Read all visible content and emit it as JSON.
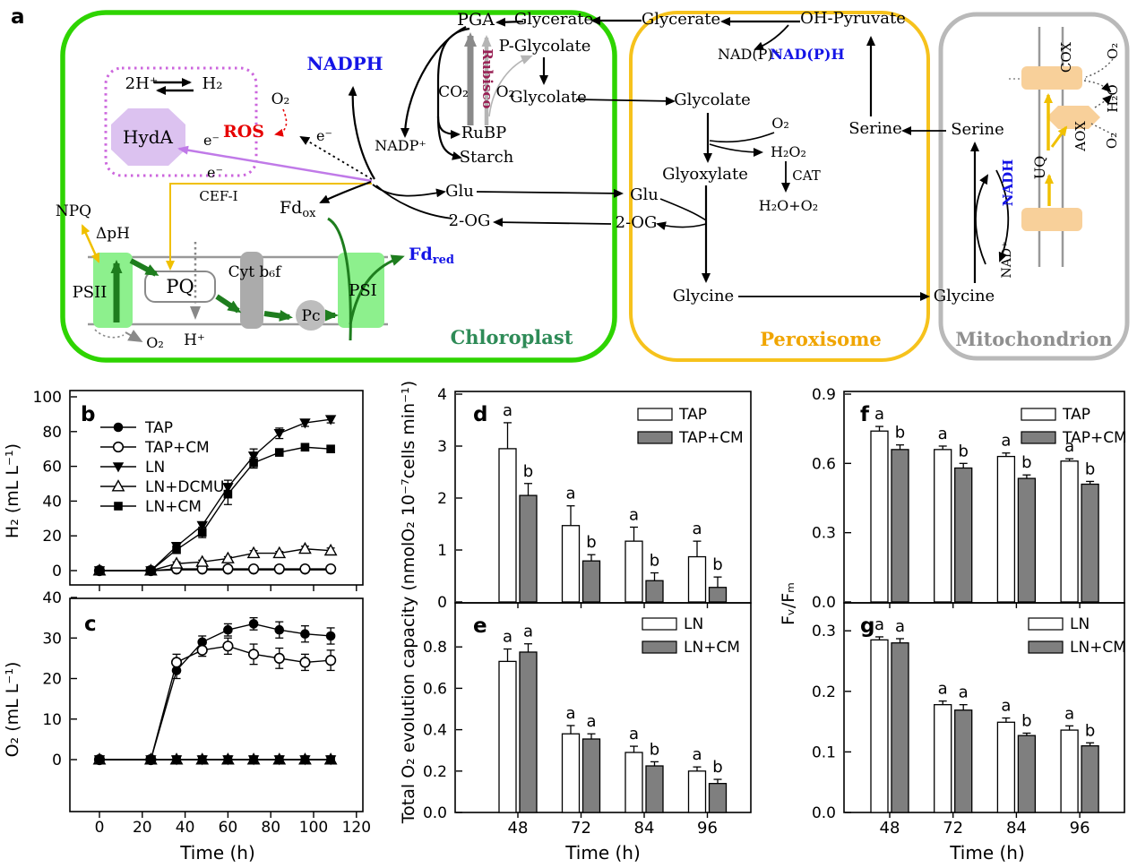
{
  "diagram": {
    "panel_label": "a",
    "colors": {
      "chloroplast_border": "#2ed400",
      "peroxisome_border": "#f6c21c",
      "mitochondrion_border": "#b9b9b9",
      "chloroplast_label": "#2e8b57",
      "peroxisome_label": "#f0a500",
      "mitochondrion_label": "#8f8f8f",
      "blue": "#1414e6",
      "red": "#e60000",
      "rubisco": "#992255"
    },
    "chloroplast": {
      "label": "Chloroplast",
      "h2x": "2H⁺",
      "h2": "H₂",
      "hyda": "HydA",
      "nadph": "NADPH",
      "o2_ros": "O₂",
      "ros": "ROS",
      "e1": "e⁻",
      "e2": "e⁻",
      "e3": "e⁻",
      "cef": "CEF-I",
      "nadp": "NADP⁺",
      "pga": "PGA",
      "glycerate": "Glycerate",
      "rubisco": "Rubisco",
      "co2": "CO₂",
      "o2_rubisco": "O₂",
      "p_glycolate": "P-Glycolate",
      "glycolate": "Glycolate",
      "rubp": "RuBP",
      "starch": "Starch",
      "fd": "Fd",
      "fd_ox_sub": "ox",
      "fd_red": "Fd",
      "fd_red_sub": "red",
      "glu": "Glu",
      "og": "2-OG",
      "npq": "NPQ",
      "dph": "ΔpH",
      "psii": "PSII",
      "pq": "PQ",
      "cytb6f": "Cyt b₆f",
      "pc": "Pc",
      "psi": "PSI",
      "h_plus": "H⁺",
      "o2_psii": "O₂"
    },
    "peroxisome": {
      "label": "Peroxisome",
      "glycerate": "Glycerate",
      "oh_pyruvate": "OH-Pyruvate",
      "nadp": "NAD(P)⁺",
      "nadph": "NAD(P)H",
      "glycolate": "Glycolate",
      "o2": "O₂",
      "h2o2": "H₂O₂",
      "cat": "CAT",
      "h2o_o2": "H₂O+O₂",
      "glyoxylate": "Glyoxylate",
      "glu": "Glu",
      "og": "2-OG",
      "serine": "Serine",
      "glycine": "Glycine"
    },
    "mitochondrion": {
      "label": "Mitochondrion",
      "serine": "Serine",
      "glycine": "Glycine",
      "nadh": "NADH",
      "nad": "NAD⁺",
      "uq": "UQ",
      "cox": "COX",
      "aox": "AOX",
      "o2_top": "O₂",
      "h2o": "H₂O",
      "o2_bottom": "O₂"
    }
  },
  "chart_data": [
    {
      "id": "b",
      "panel_label": "b",
      "type": "line",
      "ylabel": "H₂ (mL L⁻¹)",
      "xlabel": "",
      "xlim": [
        0,
        120
      ],
      "ylim": [
        0,
        100
      ],
      "xticks": [
        0,
        20,
        40,
        60,
        80,
        100,
        120
      ],
      "xtick_labels_visible": false,
      "yticks": [
        "0",
        "20",
        "40",
        "60",
        "80",
        "100"
      ],
      "x": [
        0,
        24,
        36,
        48,
        60,
        72,
        84,
        96,
        108
      ],
      "series": [
        {
          "name": "TAP",
          "marker": "circle_filled",
          "values": [
            0,
            0,
            0.4,
            0.4,
            0.4,
            0.4,
            0.4,
            0.4,
            0.4
          ],
          "errors": [
            0,
            0,
            0,
            0,
            0,
            0,
            0,
            0,
            0
          ]
        },
        {
          "name": "TAP+CM",
          "marker": "circle_open",
          "values": [
            0,
            0,
            1,
            1,
            1,
            1,
            1,
            1,
            1
          ],
          "errors": [
            0,
            0,
            0,
            0,
            0,
            0,
            0,
            0,
            0
          ]
        },
        {
          "name": "LN",
          "marker": "triangle_down_filled",
          "values": [
            0,
            0,
            14,
            26,
            48,
            66,
            79,
            85,
            87
          ],
          "errors": [
            0,
            0,
            2,
            2,
            4,
            4,
            3,
            2,
            2
          ]
        },
        {
          "name": "LN+DCMU",
          "marker": "triangle_up_open",
          "values": [
            0,
            0,
            4,
            5,
            7,
            10,
            10,
            12.5,
            11.5
          ],
          "errors": [
            0,
            0,
            1,
            1,
            1,
            1.5,
            1,
            1.5,
            1.5
          ]
        },
        {
          "name": "LN+CM",
          "marker": "square_filled",
          "values": [
            0,
            0,
            12,
            22,
            44,
            62,
            68,
            71,
            70
          ],
          "errors": [
            0,
            0,
            2,
            3,
            6,
            3,
            2,
            2,
            2
          ]
        }
      ],
      "legend": {
        "position": "top-left",
        "items": [
          "TAP",
          "TAP+CM",
          "LN",
          "LN+DCMU",
          "LN+CM"
        ]
      }
    },
    {
      "id": "c",
      "panel_label": "c",
      "type": "line",
      "ylabel": "O₂ (mL L⁻¹)",
      "xlabel": "Time (h)",
      "xlim": [
        0,
        120
      ],
      "ylim": [
        0,
        40
      ],
      "xticks": [
        0,
        20,
        40,
        60,
        80,
        100,
        120
      ],
      "xtick_labels_visible": true,
      "yticks": [
        "0",
        "10",
        "20",
        "30",
        "40"
      ],
      "x": [
        0,
        24,
        36,
        48,
        60,
        72,
        84,
        96,
        108
      ],
      "series": [
        {
          "name": "TAP",
          "marker": "circle_filled",
          "values": [
            0,
            0,
            22,
            29,
            32,
            33.5,
            32,
            31,
            30.5
          ],
          "errors": [
            0,
            0,
            2,
            1.5,
            1.5,
            1.5,
            2,
            2,
            2
          ]
        },
        {
          "name": "TAP+CM",
          "marker": "circle_open",
          "values": [
            0,
            0,
            24,
            27,
            28,
            26,
            25,
            24,
            24.5
          ],
          "errors": [
            0,
            0,
            2,
            1.5,
            2,
            2.5,
            2.5,
            2,
            2.5
          ]
        },
        {
          "name": "LN",
          "marker": "triangle_down_filled",
          "values": [
            0,
            0,
            0,
            0,
            0,
            0,
            0,
            0,
            0
          ],
          "errors": [
            0,
            0,
            0,
            0,
            0,
            0,
            0,
            0,
            0
          ]
        },
        {
          "name": "LN+DCMU",
          "marker": "triangle_up_open",
          "values": [
            0,
            0,
            0,
            0,
            0,
            0,
            0,
            0,
            0
          ],
          "errors": [
            0,
            0,
            0,
            0,
            0,
            0,
            0,
            0,
            0
          ]
        },
        {
          "name": "LN+CM",
          "marker": "square_filled",
          "values": [
            0,
            0,
            0,
            0,
            0,
            0,
            0,
            0,
            0
          ],
          "errors": [
            0,
            0,
            0,
            0,
            0,
            0,
            0,
            0,
            0
          ]
        }
      ],
      "legend": null
    },
    {
      "id": "d",
      "panel_label": "d",
      "type": "bar",
      "ylabel": "",
      "xlabel": "",
      "ylim": [
        0,
        4
      ],
      "yticks": [
        "0",
        "1",
        "2",
        "3",
        "4"
      ],
      "categories": [
        "48",
        "72",
        "84",
        "96"
      ],
      "category_labels_visible": false,
      "series": [
        {
          "name": "TAP",
          "fill": "#ffffff",
          "values": [
            2.95,
            1.47,
            1.17,
            0.87
          ],
          "errors": [
            0.5,
            0.38,
            0.27,
            0.3
          ],
          "letters": [
            "a",
            "a",
            "a",
            "a"
          ]
        },
        {
          "name": "TAP+CM",
          "fill": "#7f7f7f",
          "values": [
            2.05,
            0.79,
            0.41,
            0.28
          ],
          "errors": [
            0.23,
            0.12,
            0.15,
            0.2
          ],
          "letters": [
            "b",
            "b",
            "b",
            "b"
          ]
        }
      ],
      "legend": {
        "position": "top-right",
        "items": [
          "TAP",
          "TAP+CM"
        ]
      }
    },
    {
      "id": "e",
      "panel_label": "e",
      "type": "bar",
      "ylabel": "Total O₂ evolution capacity (nmolO₂ 10⁻⁷cells min⁻¹)",
      "xlabel": "Time (h)",
      "ylim": [
        0,
        0.8
      ],
      "yticks": [
        "0.0",
        "0.2",
        "0.4",
        "0.6",
        "0.8"
      ],
      "categories": [
        "48",
        "72",
        "84",
        "96"
      ],
      "category_labels_visible": true,
      "series": [
        {
          "name": "LN",
          "fill": "#ffffff",
          "values": [
            0.73,
            0.38,
            0.29,
            0.2
          ],
          "errors": [
            0.06,
            0.04,
            0.03,
            0.02
          ],
          "letters": [
            "a",
            "a",
            "a",
            "a"
          ]
        },
        {
          "name": "LN+CM",
          "fill": "#7f7f7f",
          "values": [
            0.775,
            0.355,
            0.225,
            0.14
          ],
          "errors": [
            0.04,
            0.025,
            0.02,
            0.02
          ],
          "letters": [
            "a",
            "a",
            "b",
            "b"
          ]
        }
      ],
      "legend": {
        "position": "top-right",
        "items": [
          "LN",
          "LN+CM"
        ]
      }
    },
    {
      "id": "f",
      "panel_label": "f",
      "type": "bar",
      "ylabel": "Fᵥ/Fₘ",
      "xlabel": "",
      "ylim": [
        0,
        0.9
      ],
      "yticks": [
        "0.0",
        "0.3",
        "0.6",
        "0.9"
      ],
      "categories": [
        "48",
        "72",
        "84",
        "96"
      ],
      "category_labels_visible": false,
      "series": [
        {
          "name": "TAP",
          "fill": "#ffffff",
          "values": [
            0.74,
            0.66,
            0.63,
            0.61
          ],
          "errors": [
            0.02,
            0.015,
            0.015,
            0.01
          ],
          "letters": [
            "a",
            "a",
            "a",
            "a"
          ]
        },
        {
          "name": "TAP+CM",
          "fill": "#7f7f7f",
          "values": [
            0.66,
            0.58,
            0.535,
            0.51
          ],
          "errors": [
            0.02,
            0.02,
            0.015,
            0.012
          ],
          "letters": [
            "b",
            "b",
            "b",
            "b"
          ]
        }
      ],
      "legend": {
        "position": "top-right",
        "items": [
          "TAP",
          "TAP+CM"
        ]
      }
    },
    {
      "id": "g",
      "panel_label": "g",
      "type": "bar",
      "ylabel": "",
      "xlabel": "Time (h)",
      "ylim": [
        0,
        0.3
      ],
      "yticks": [
        "0.0",
        "0.1",
        "0.2",
        "0.3"
      ],
      "categories": [
        "48",
        "72",
        "84",
        "96"
      ],
      "category_labels_visible": true,
      "series": [
        {
          "name": "LN",
          "fill": "#ffffff",
          "values": [
            0.285,
            0.178,
            0.149,
            0.136
          ],
          "errors": [
            0.005,
            0.006,
            0.007,
            0.007
          ],
          "letters": [
            "a",
            "a",
            "a",
            "a"
          ]
        },
        {
          "name": "LN+CM",
          "fill": "#7f7f7f",
          "values": [
            0.28,
            0.169,
            0.127,
            0.11
          ],
          "errors": [
            0.007,
            0.009,
            0.004,
            0.005
          ],
          "letters": [
            "a",
            "a",
            "b",
            "b"
          ]
        }
      ],
      "legend": {
        "position": "top-right",
        "items": [
          "LN",
          "LN+CM"
        ]
      }
    }
  ]
}
